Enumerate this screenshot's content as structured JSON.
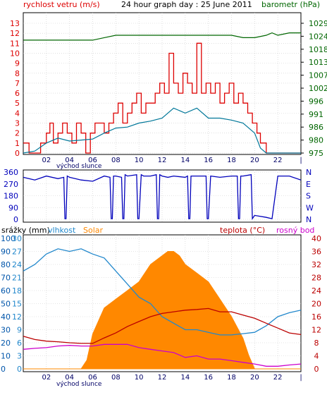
{
  "colors": {
    "wind": "#dd0000",
    "baro": "#006600",
    "wind_avg": "#007799",
    "direction": "#0000bb",
    "rain": "#0055aa",
    "humidity": "#2288cc",
    "solar": "#ff8800",
    "temp": "#bb0000",
    "dew": "#cc00cc",
    "title": "#000000",
    "hour_axis": "#000066"
  },
  "header": {
    "wind_label": "rychlost vetru (m/s)",
    "title": "24 hour graph day : 25 June 2011",
    "baro_label": "barometr (hPa)"
  },
  "panel2": {
    "dir_labels": [
      "N",
      "W",
      "S",
      "E",
      "N"
    ]
  },
  "panel3": {
    "rain_label": "srážky (mm)",
    "hum_label": "vlhkost",
    "solar_label": "Solar",
    "temp_label": "teplota (°C)",
    "dew_label": "rosný bod"
  },
  "sunrise_label": "východ slunce",
  "chart_data": [
    {
      "type": "line",
      "title": "24 hour graph day : 25 June 2011",
      "x_ticks": [
        "02",
        "04",
        "06",
        "08",
        "10",
        "12",
        "14",
        "16",
        "18",
        "20",
        "22"
      ],
      "ylabel": "rychlost vetru (m/s)",
      "ylim": [
        0,
        13
      ],
      "y_ticks": [
        "0",
        "1",
        "2",
        "3",
        "4",
        "5",
        "6",
        "7",
        "8",
        "9",
        "10",
        "11",
        "12",
        "13"
      ],
      "y2label": "barometr (hPa)",
      "y2_ticks": [
        "975",
        "980",
        "986",
        "991",
        "996",
        "1002",
        "1007",
        "1013",
        "1018",
        "1024",
        "1029"
      ],
      "series": [
        {
          "name": "gust",
          "x": [
            0,
            0.5,
            1,
            1.5,
            2,
            2.3,
            2.6,
            3,
            3.4,
            3.8,
            4.2,
            4.6,
            5,
            5.4,
            5.8,
            6.2,
            6.6,
            7,
            7.4,
            7.8,
            8.2,
            8.6,
            9,
            9.4,
            9.8,
            10.2,
            10.6,
            11,
            11.4,
            11.8,
            12.2,
            12.6,
            13,
            13.4,
            13.8,
            14.2,
            14.6,
            15,
            15.4,
            15.8,
            16.2,
            16.6,
            17,
            17.4,
            17.8,
            18.2,
            18.6,
            19,
            19.4,
            19.8,
            20.2,
            20.5,
            21,
            22,
            23,
            24
          ],
          "values": [
            1,
            0,
            0,
            1,
            2,
            3,
            1,
            2,
            3,
            2,
            1,
            3,
            2,
            0,
            2,
            3,
            3,
            2,
            3,
            4,
            5,
            3,
            4,
            5,
            6,
            4,
            5,
            5,
            6,
            7,
            6,
            10,
            7,
            6,
            8,
            7,
            6,
            11,
            6,
            7,
            6,
            7,
            5,
            6,
            7,
            5,
            6,
            5,
            4,
            3,
            2,
            1,
            0,
            0,
            0,
            0
          ]
        },
        {
          "name": "average",
          "x": [
            0,
            1,
            2,
            3,
            4,
            5,
            6,
            7,
            8,
            9,
            10,
            11,
            12,
            13,
            14,
            15,
            16,
            17,
            18,
            19,
            20,
            20.5,
            21,
            22,
            23,
            24
          ],
          "values": [
            0,
            0.2,
            1,
            1.5,
            1.2,
            1.3,
            1.4,
            2,
            2.5,
            2.6,
            3,
            3.2,
            3.5,
            4.5,
            4,
            4.5,
            3.5,
            3.5,
            3.3,
            3,
            2,
            0.5,
            0,
            0,
            0,
            0
          ]
        },
        {
          "name": "barometr",
          "axis": "y2",
          "x": [
            0,
            2,
            4,
            6,
            7,
            8,
            10,
            12,
            14,
            16,
            18,
            19,
            20,
            21,
            21.5,
            22,
            23,
            24
          ],
          "values": [
            1022,
            1022,
            1022,
            1022,
            1023,
            1024,
            1024,
            1024,
            1024,
            1024,
            1024,
            1023,
            1023,
            1024,
            1025,
            1024,
            1025,
            1025
          ]
        }
      ]
    },
    {
      "type": "line",
      "ylim": [
        0,
        360
      ],
      "y_ticks": [
        "0",
        "90",
        "180",
        "270",
        "360"
      ],
      "series": [
        {
          "name": "direction",
          "x": [
            0,
            1,
            2,
            3,
            3.5,
            3.6,
            3.7,
            3.8,
            4,
            5,
            6,
            7,
            7.5,
            7.6,
            7.7,
            7.8,
            8,
            8.5,
            8.6,
            8.7,
            8.8,
            9,
            9.8,
            9.9,
            10,
            10.2,
            10.4,
            11,
            11.5,
            11.6,
            11.7,
            11.8,
            12,
            12.5,
            13,
            14,
            14.2,
            14.3,
            14.4,
            14.5,
            15,
            15.8,
            15.9,
            16,
            16.2,
            17,
            18,
            18.5,
            18.6,
            18.7,
            18.8,
            19,
            19.7,
            19.8,
            20,
            21,
            21.5,
            22,
            23,
            24
          ],
          "values": [
            320,
            300,
            330,
            310,
            320,
            5,
            5,
            330,
            320,
            300,
            290,
            330,
            320,
            5,
            5,
            330,
            330,
            320,
            5,
            5,
            340,
            330,
            340,
            5,
            5,
            340,
            330,
            330,
            340,
            5,
            5,
            340,
            330,
            320,
            330,
            320,
            330,
            5,
            5,
            330,
            330,
            330,
            5,
            5,
            330,
            320,
            330,
            330,
            5,
            5,
            330,
            330,
            340,
            5,
            30,
            15,
            5,
            330,
            330,
            300
          ]
        }
      ]
    },
    {
      "type": "line",
      "y_ticks_rain": [
        "0",
        "10",
        "20",
        "30",
        "40",
        "50",
        "60",
        "70",
        "80",
        "90",
        "100"
      ],
      "y_ticks_humidity": [
        "0",
        "3",
        "6",
        "9",
        "12",
        "15",
        "18",
        "21",
        "24",
        "27",
        "30"
      ],
      "y_ticks_left_inner": [
        "0",
        "4",
        "8",
        "12",
        "16",
        "20",
        "24",
        "28",
        "32",
        "36",
        "40"
      ],
      "y_ticks_temp": [
        "0",
        "4",
        "8",
        "12",
        "16",
        "20",
        "24",
        "28",
        "32",
        "36",
        "40"
      ],
      "series": [
        {
          "name": "Solar",
          "x": [
            0,
            4,
            5,
            5.5,
            6,
            7,
            8,
            9,
            10,
            11,
            12,
            12.5,
            13,
            13.5,
            14,
            15,
            16,
            17,
            18,
            19,
            19.5,
            20,
            24
          ],
          "values": [
            0,
            0,
            0,
            2,
            8,
            14,
            16,
            18,
            20,
            24,
            26,
            27,
            27,
            26,
            24,
            22,
            20,
            16,
            12,
            7,
            3,
            0,
            0
          ]
        },
        {
          "name": "vlhkost",
          "x": [
            0,
            1,
            2,
            3,
            4,
            5,
            6,
            7,
            8,
            9,
            10,
            11,
            12,
            13,
            14,
            15,
            16,
            17,
            18,
            19,
            20,
            21,
            22,
            23,
            24
          ],
          "values": [
            75,
            80,
            88,
            92,
            90,
            92,
            88,
            85,
            75,
            65,
            55,
            50,
            40,
            35,
            30,
            30,
            28,
            26,
            26,
            27,
            28,
            33,
            40,
            43,
            45
          ]
        },
        {
          "name": "teplota",
          "x": [
            0,
            1,
            2,
            3,
            4,
            5,
            6,
            7,
            8,
            9,
            10,
            11,
            12,
            13,
            14,
            15,
            16,
            17,
            18,
            19,
            20,
            21,
            22,
            23,
            24
          ],
          "values": [
            10,
            9,
            8.5,
            8.3,
            8,
            7.8,
            7.8,
            9.5,
            11,
            13,
            14.5,
            16,
            17,
            17.5,
            18,
            18.2,
            18.5,
            17.5,
            17.5,
            16.5,
            15.5,
            14,
            12.5,
            11,
            10.5
          ]
        },
        {
          "name": "rosný bod",
          "x": [
            0,
            1,
            2,
            3,
            4,
            5,
            6,
            7,
            8,
            9,
            10,
            11,
            12,
            13,
            14,
            15,
            16,
            17,
            18,
            19,
            20,
            21,
            22,
            23,
            24
          ],
          "values": [
            6,
            6.3,
            6.5,
            7,
            7.2,
            7,
            7,
            7.5,
            7.5,
            7.5,
            6.5,
            6,
            5.5,
            5,
            3.5,
            4,
            3,
            3,
            2.5,
            2,
            1.5,
            0.8,
            0.8,
            1.2,
            1.5
          ]
        }
      ]
    }
  ]
}
